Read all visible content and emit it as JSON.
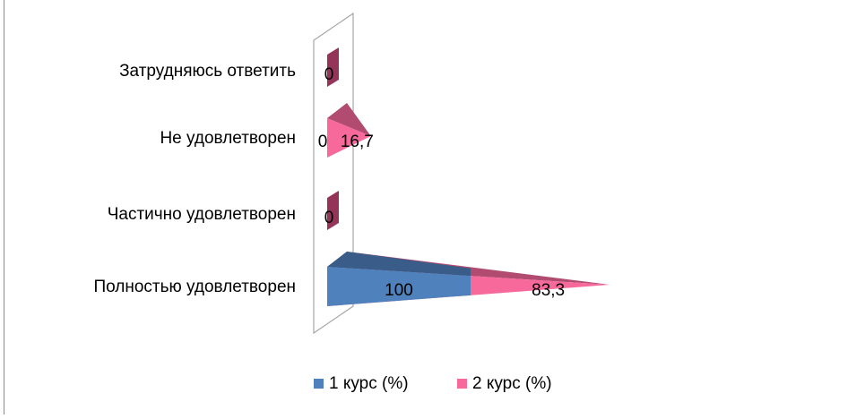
{
  "chart_data": {
    "type": "bar",
    "orientation": "horizontal",
    "style": "3d-cone",
    "stacked": true,
    "categories": [
      "Полностью удовлетворен",
      "Частично удовлетворен",
      "Не удовлетворен",
      "Затрудняюсь ответить"
    ],
    "series": [
      {
        "name": "1 курс (%)",
        "color": "#4F81BD",
        "values": [
          100,
          0,
          0,
          0
        ],
        "labels": [
          "100",
          "",
          "0",
          ""
        ]
      },
      {
        "name": "2 курс (%)",
        "color": "#F7689B",
        "values": [
          83.3,
          0,
          16.7,
          0
        ],
        "labels": [
          "83,3",
          "0",
          "16,7",
          "0"
        ]
      }
    ],
    "xlim": [
      0,
      183.3
    ],
    "legend_position": "bottom",
    "grid": false
  }
}
